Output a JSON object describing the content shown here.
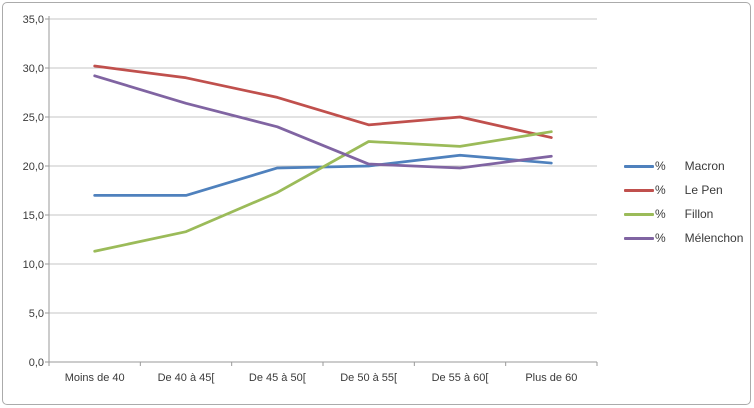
{
  "chart_data": {
    "type": "line",
    "title": "",
    "xlabel": "",
    "ylabel": "",
    "categories": [
      "Moins de 40",
      "De 40 à 45[",
      "De 45 à 50[",
      "De 50 à 55[",
      "De 55 à 60[",
      "Plus de 60"
    ],
    "series": [
      {
        "name": "Macron",
        "legend_prefix": "%",
        "color": "#4F81BD",
        "values": [
          17.0,
          17.0,
          19.8,
          20.0,
          21.1,
          20.3
        ]
      },
      {
        "name": "Le Pen",
        "legend_prefix": "%",
        "color": "#C0504D",
        "values": [
          30.2,
          29.0,
          27.0,
          24.2,
          25.0,
          22.9
        ]
      },
      {
        "name": "Fillon",
        "legend_prefix": "%",
        "color": "#9BBB59",
        "values": [
          11.3,
          13.3,
          17.3,
          22.5,
          22.0,
          23.5
        ]
      },
      {
        "name": "Mélenchon",
        "legend_prefix": "%",
        "color": "#8064A2",
        "values": [
          29.2,
          26.4,
          24.0,
          20.2,
          19.8,
          21.0
        ]
      }
    ],
    "ylim": [
      0,
      35
    ],
    "y_tick_step": 5,
    "y_tick_labels": [
      "0,0",
      "5,0",
      "10,0",
      "15,0",
      "20,0",
      "25,0",
      "30,0",
      "35,0"
    ],
    "grid": true,
    "legend_position": "right"
  },
  "colors": {
    "gridline": "#c6c6c6",
    "axis": "#9a9a9a",
    "text": "#3a3a3a",
    "frame_border": "#ababab"
  }
}
